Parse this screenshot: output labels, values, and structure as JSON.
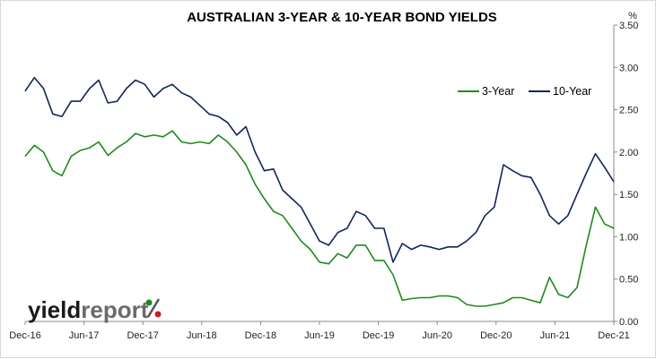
{
  "chart_data": {
    "type": "line",
    "title": "AUSTRALIAN 3-YEAR & 10-YEAR BOND YIELDS",
    "y_unit": "%",
    "y_axis_position": "right",
    "ylim": [
      0,
      3.5
    ],
    "y_ticks": [
      "0.00",
      "0.50",
      "1.00",
      "1.50",
      "2.00",
      "2.50",
      "3.00",
      "3.50"
    ],
    "x_ticks": [
      "Dec-16",
      "Jun-17",
      "Dec-17",
      "Jun-18",
      "Dec-18",
      "Jun-19",
      "Dec-19",
      "Jun-20",
      "Dec-20",
      "Jun-21",
      "Dec-21"
    ],
    "x_range": [
      "Dec-16",
      "Dec-21"
    ],
    "grid": false,
    "legend_placement": "top-right",
    "series": [
      {
        "name": "3-Year",
        "color": "#1e8a1e",
        "points": [
          [
            0,
            1.95
          ],
          [
            1,
            2.08
          ],
          [
            2,
            2.0
          ],
          [
            3,
            1.78
          ],
          [
            4,
            1.72
          ],
          [
            5,
            1.95
          ],
          [
            6,
            2.02
          ],
          [
            7,
            2.05
          ],
          [
            8,
            2.12
          ],
          [
            9,
            1.96
          ],
          [
            10,
            2.05
          ],
          [
            11,
            2.12
          ],
          [
            12,
            2.22
          ],
          [
            13,
            2.18
          ],
          [
            14,
            2.2
          ],
          [
            15,
            2.18
          ],
          [
            16,
            2.25
          ],
          [
            17,
            2.12
          ],
          [
            18,
            2.1
          ],
          [
            19,
            2.12
          ],
          [
            20,
            2.1
          ],
          [
            21,
            2.2
          ],
          [
            22,
            2.12
          ],
          [
            23,
            2.0
          ],
          [
            24,
            1.85
          ],
          [
            25,
            1.62
          ],
          [
            26,
            1.45
          ],
          [
            27,
            1.3
          ],
          [
            28,
            1.25
          ],
          [
            29,
            1.1
          ],
          [
            30,
            0.95
          ],
          [
            31,
            0.85
          ],
          [
            32,
            0.7
          ],
          [
            33,
            0.68
          ],
          [
            34,
            0.8
          ],
          [
            35,
            0.75
          ],
          [
            36,
            0.9
          ],
          [
            37,
            0.9
          ],
          [
            38,
            0.72
          ],
          [
            39,
            0.72
          ],
          [
            40,
            0.55
          ],
          [
            41,
            0.25
          ],
          [
            42,
            0.27
          ],
          [
            43,
            0.28
          ],
          [
            44,
            0.28
          ],
          [
            45,
            0.3
          ],
          [
            46,
            0.3
          ],
          [
            47,
            0.28
          ],
          [
            48,
            0.2
          ],
          [
            49,
            0.18
          ],
          [
            50,
            0.18
          ],
          [
            51,
            0.2
          ],
          [
            52,
            0.22
          ],
          [
            53,
            0.28
          ],
          [
            54,
            0.28
          ],
          [
            55,
            0.25
          ],
          [
            56,
            0.22
          ],
          [
            57,
            0.52
          ],
          [
            58,
            0.32
          ],
          [
            59,
            0.28
          ],
          [
            60,
            0.4
          ],
          [
            61,
            0.9
          ],
          [
            62,
            1.35
          ],
          [
            63,
            1.15
          ],
          [
            64,
            1.1
          ]
        ]
      },
      {
        "name": "10-Year",
        "color": "#12255a",
        "points": [
          [
            0,
            2.72
          ],
          [
            1,
            2.88
          ],
          [
            2,
            2.75
          ],
          [
            3,
            2.45
          ],
          [
            4,
            2.42
          ],
          [
            5,
            2.6
          ],
          [
            6,
            2.6
          ],
          [
            7,
            2.75
          ],
          [
            8,
            2.85
          ],
          [
            9,
            2.58
          ],
          [
            10,
            2.6
          ],
          [
            11,
            2.75
          ],
          [
            12,
            2.85
          ],
          [
            13,
            2.8
          ],
          [
            14,
            2.65
          ],
          [
            15,
            2.75
          ],
          [
            16,
            2.8
          ],
          [
            17,
            2.7
          ],
          [
            18,
            2.65
          ],
          [
            19,
            2.55
          ],
          [
            20,
            2.45
          ],
          [
            21,
            2.42
          ],
          [
            22,
            2.35
          ],
          [
            23,
            2.2
          ],
          [
            24,
            2.3
          ],
          [
            25,
            2.0
          ],
          [
            26,
            1.78
          ],
          [
            27,
            1.8
          ],
          [
            28,
            1.55
          ],
          [
            29,
            1.45
          ],
          [
            30,
            1.35
          ],
          [
            31,
            1.15
          ],
          [
            32,
            0.95
          ],
          [
            33,
            0.9
          ],
          [
            34,
            1.05
          ],
          [
            35,
            1.1
          ],
          [
            36,
            1.3
          ],
          [
            37,
            1.25
          ],
          [
            38,
            1.1
          ],
          [
            39,
            1.1
          ],
          [
            40,
            0.7
          ],
          [
            41,
            0.92
          ],
          [
            42,
            0.85
          ],
          [
            43,
            0.9
          ],
          [
            44,
            0.88
          ],
          [
            45,
            0.85
          ],
          [
            46,
            0.88
          ],
          [
            47,
            0.88
          ],
          [
            48,
            0.95
          ],
          [
            49,
            1.05
          ],
          [
            50,
            1.25
          ],
          [
            51,
            1.35
          ],
          [
            52,
            1.85
          ],
          [
            53,
            1.78
          ],
          [
            54,
            1.72
          ],
          [
            55,
            1.7
          ],
          [
            56,
            1.5
          ],
          [
            57,
            1.25
          ],
          [
            58,
            1.15
          ],
          [
            59,
            1.25
          ],
          [
            60,
            1.5
          ],
          [
            61,
            1.75
          ],
          [
            62,
            1.98
          ],
          [
            63,
            1.82
          ],
          [
            64,
            1.65
          ]
        ]
      }
    ]
  },
  "logo": {
    "part1": "yield",
    "part2": "report",
    "symbol": "%"
  }
}
